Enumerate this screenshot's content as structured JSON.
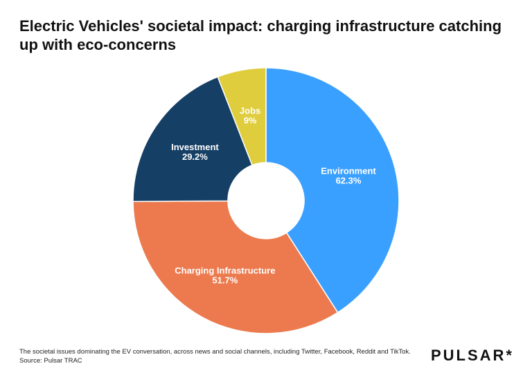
{
  "chart_data": {
    "type": "donut",
    "title": "Electric Vehicles' societal impact: charging infrastructure catching up with eco-concerns",
    "categories": [
      "Environment",
      "Charging Infrastructure",
      "Investment",
      "Jobs"
    ],
    "values": [
      62.3,
      51.7,
      29.2,
      9
    ],
    "value_labels": [
      "62.3%",
      "51.7%",
      "29.2%",
      "9%"
    ],
    "colors": [
      "#3aa0ff",
      "#ec7a4e",
      "#163f66",
      "#dfcd3e"
    ],
    "note": "The societal issues dominating the EV conversation, across news and social channels, including Twitter, Facebook, Reddit and TikTok.",
    "source": "Source: Pulsar TRAC",
    "brand": "PULSAR*"
  }
}
